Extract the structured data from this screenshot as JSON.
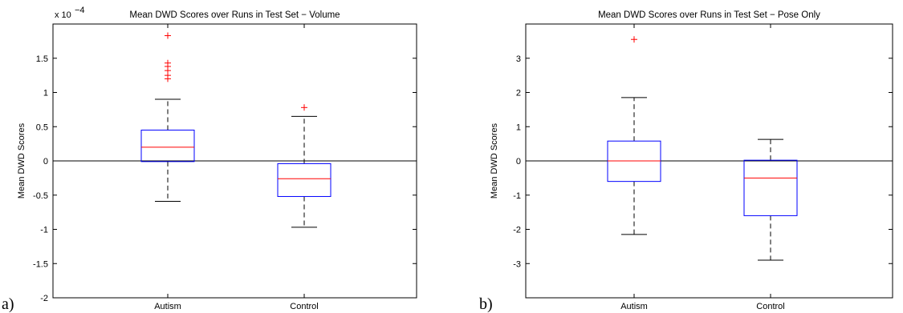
{
  "chart_data": [
    {
      "type": "boxplot",
      "panel_label": "a)",
      "title": "Mean DWD Scores over Runs in Test Set − Volume",
      "ylabel": "Mean DWD Scores",
      "xlabel": "",
      "scale_label": "x 10",
      "scale_exponent": "−4",
      "ylim": [
        -2,
        2
      ],
      "yticks": [
        -2,
        -1.5,
        -1,
        -0.5,
        0,
        0.5,
        1,
        1.5
      ],
      "ytick_labels": [
        "-2",
        "-1.5",
        "-1",
        "-0.5",
        "0",
        "0.5",
        "1",
        "1.5"
      ],
      "grid": false,
      "zero_line": true,
      "categories": [
        "Autism",
        "Control"
      ],
      "boxes": [
        {
          "category": "Autism",
          "whisker_low": -0.59,
          "q1": -0.01,
          "median": 0.2,
          "q3": 0.45,
          "whisker_high": 0.9,
          "outliers": [
            1.2,
            1.25,
            1.32,
            1.38,
            1.43,
            1.83
          ]
        },
        {
          "category": "Control",
          "whisker_low": -0.97,
          "q1": -0.52,
          "median": -0.26,
          "q3": -0.04,
          "whisker_high": 0.65,
          "outliers": [
            0.78
          ]
        }
      ]
    },
    {
      "type": "boxplot",
      "panel_label": "b)",
      "title": "Mean DWD Scores over Runs in Test Set − Pose Only",
      "ylabel": "Mean DWD Scores",
      "xlabel": "",
      "ylim": [
        -4,
        4
      ],
      "yticks": [
        -3,
        -2,
        -1,
        0,
        1,
        2,
        3
      ],
      "ytick_labels": [
        "-3",
        "-2",
        "-1",
        "0",
        "1",
        "2",
        "3"
      ],
      "grid": false,
      "zero_line": true,
      "categories": [
        "Autism",
        "Control"
      ],
      "boxes": [
        {
          "category": "Autism",
          "whisker_low": -2.15,
          "q1": -0.6,
          "median": 0.0,
          "q3": 0.58,
          "whisker_high": 1.85,
          "outliers": [
            3.55
          ]
        },
        {
          "category": "Control",
          "whisker_low": -2.9,
          "q1": -1.6,
          "median": -0.5,
          "q3": 0.02,
          "whisker_high": 0.63,
          "outliers": []
        }
      ]
    }
  ],
  "colors": {
    "box": "#0000ff",
    "median": "#ff0000",
    "outlier": "#ff0000",
    "whisker": "#000000",
    "axis": "#000000"
  }
}
